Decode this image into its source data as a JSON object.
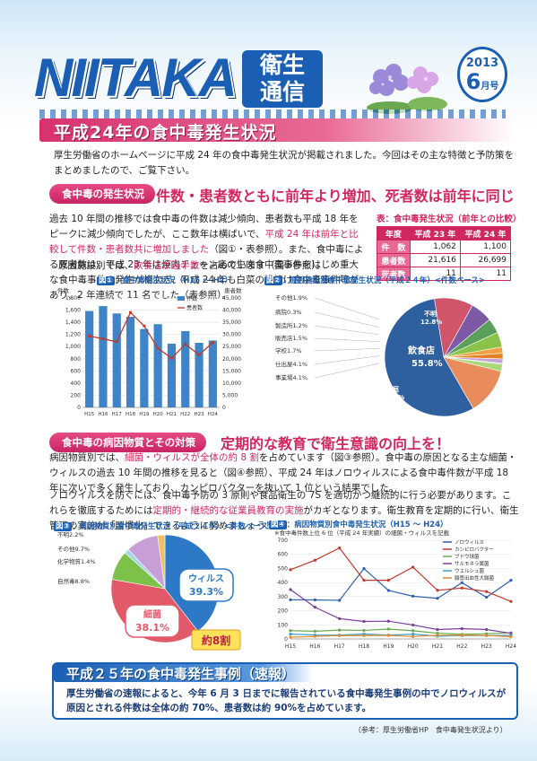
{
  "header": {
    "brand": "NIITAKA",
    "brand_sub_1": "衛生",
    "brand_sub_2": "通信",
    "year": "2013",
    "month": "6",
    "month_suffix": "月号"
  },
  "main_title": "平成24年の食中毒発生状況",
  "intro": "厚生労働省のホームページに平成 24 年の食中毒発生状況が掲載されました。今回はその主な特徴と予防策をまとめましたので、ご覧下さい。",
  "section1": {
    "tag": "食中毒の発生状況",
    "headline": "件数・患者数ともに前年より増加、死者数は前年に同じ",
    "para1_a": "過去 10 年間の推移では食中毒の件数は減少傾向、患者数も平成 18 年をピークに減少傾向でしたが、ここ数年は横ばいで、",
    "para1_hl": "平成 24 年は前年と比較して件数・患者数共に増加しました",
    "para1_b": "（図①・表参照）。また、食中毒による死者数は、平成 23 年は焼肉チェーン店の生肉食中毒事件をはじめ重大な食中毒事件の発生が相次ぎ、平成 24 年も白菜の浅漬け食中毒事件等があり、2 年連続で 11 名でした（表参照）。",
    "para2_a": "原因施設別では、",
    "para2_hl": "飲食店が過半数",
    "para2_b": "を占めています（図②参照）。"
  },
  "table": {
    "title": "表：食中毒発生状況（前年との比較）",
    "headers": [
      "年度",
      "平成 23 年",
      "平成 24 年"
    ],
    "rows": [
      {
        "label": "件　数",
        "v23": "1,062",
        "v24": "1,100"
      },
      {
        "label": "患者数",
        "v23": "21,616",
        "v24": "26,699"
      },
      {
        "label": "死者数",
        "v23": "11",
        "v24": "11"
      }
    ]
  },
  "fig1": {
    "num": "図①",
    "title": "：食中毒発生状況（H15 ～ H2）",
    "left_unit": "件数",
    "right_unit": "患者数",
    "legend_bar": "件数",
    "legend_line": "患者数"
  },
  "fig2": {
    "num": "図②",
    "title": "：原因施設別食中毒発生状況（平成２４年）<件数ベース>",
    "labels": {
      "other": "その他1.9%",
      "hospital": "病院0.3%",
      "factory": "製造所1.2%",
      "shop": "販売店1.5%",
      "school": "学校1.7%",
      "catering": "仕出屋4.1%",
      "office": "事業場4.1%",
      "inn": "旅館",
      "inn_pct": "6.0%",
      "home": "家庭",
      "home_pct": "10.6%",
      "unknown": "不明",
      "unknown_pct": "12.8%",
      "restaurant": "飲食店",
      "restaurant_pct": "55.8%"
    }
  },
  "section2": {
    "tag": "食中毒の病因物質とその対策",
    "headline": "定期的な教育で衛生意識の向上を！",
    "para3_a": "病因物質別では、",
    "para3_hl": "細菌・ウィルスが全体の約 8 割",
    "para3_b": "を占めています（図③参照）。食中毒の原因となる主な細菌・ウィルスの過去 10 年間の推移を見ると（図④参照）、平成 24 年はノロウィルスによる食中毒件数が平成 18 年に次いで多く発生しており、カンピロバクターを抜いて 1 位という結果でした。",
    "para4_a": "ノロウイルスを防ぐには、食中毒予防の 3 原則や食品衛生の 7S を適切かつ継続的に行う必要があります。これらを徹底するためには",
    "para4_hl": "定期的・継続的な従業員教育の実施",
    "para4_b": "がカギとなります。衛生教育を定期的に行い、衛生管理の実施が「習慣化」できるように努めましょう！"
  },
  "fig3": {
    "num": "図③",
    "title": "：病因物質別食中毒発生状況（平成２４年）<件数ベース>",
    "labels": {
      "unknown": "不明2.2%",
      "other": "その他9.7%",
      "chemical": "化学物質1.4%",
      "natural": "自然毒8.8%",
      "virus": "ウィルス",
      "virus_pct": "39.3%",
      "bacteria": "細菌",
      "bacteria_pct": "38.1%",
      "approx": "約8割"
    }
  },
  "fig4": {
    "num": "図④",
    "title": "：病因物質別食中毒発生状況（H15 ～ H24）",
    "note": "※食中毒件数上位 6 位（平成 24 年実績）の細菌・ウィルスを記載",
    "legend": [
      "ノロウィルス",
      "カンピロバクター",
      "ブドウ球菌",
      "サルモネラ属菌",
      "ウエルシュ菌",
      "腸管出血性大腸菌"
    ],
    "colors": [
      "#2f5fb0",
      "#c0392b",
      "#6aa84f",
      "#7b3fa0",
      "#3aa0c8",
      "#e08a2a"
    ]
  },
  "case": {
    "title": "平成２５年の食中毒発生事例（速報）",
    "text": "厚生労働省の速報によると、今年 6 月 3 日までに報告されている食中毒発生事例の中でノロウィルスが原因とされる件数は全体の約 70%、患者数は約 90%を占めています。"
  },
  "source": "（参考：厚生労働省HP　食中毒発生状況より）",
  "chart_data": [
    {
      "type": "bar",
      "categories": [
        "H15",
        "H16",
        "H17",
        "H18",
        "H19",
        "H20",
        "H21",
        "H22",
        "H23",
        "H24"
      ],
      "series": [
        {
          "name": "件数",
          "values": [
            1585,
            1666,
            1545,
            1491,
            1289,
            1369,
            1048,
            1254,
            1062,
            1100
          ]
        },
        {
          "name": "患者数",
          "values": [
            29355,
            28175,
            27019,
            39026,
            33477,
            24303,
            20249,
            25972,
            21616,
            26699
          ]
        }
      ],
      "ylabel": "件数",
      "y2label": "患者数",
      "ylim": [
        0,
        1800
      ],
      "y2lim": [
        0,
        45000
      ],
      "yticks": [
        0,
        200,
        400,
        600,
        800,
        1000,
        1200,
        1400,
        1600,
        1800
      ],
      "y2ticks": [
        0,
        5000,
        10000,
        15000,
        20000,
        25000,
        30000,
        35000,
        40000,
        45000
      ],
      "legend": "top-right"
    },
    {
      "type": "pie",
      "categories": [
        "飲食店",
        "家庭",
        "旅館",
        "事業場",
        "仕出屋",
        "学校",
        "販売店",
        "製造所",
        "病院",
        "その他",
        "不明"
      ],
      "values": [
        55.8,
        10.6,
        6.0,
        4.1,
        4.1,
        1.7,
        1.5,
        1.2,
        0.3,
        1.9,
        12.8
      ]
    },
    {
      "type": "pie",
      "categories": [
        "ウィルス",
        "細菌",
        "自然毒",
        "化学物質",
        "その他",
        "不明"
      ],
      "values": [
        39.3,
        38.1,
        8.8,
        1.4,
        9.7,
        2.2
      ]
    },
    {
      "type": "line",
      "categories": [
        "H15",
        "H16",
        "H17",
        "H18",
        "H19",
        "H20",
        "H21",
        "H22",
        "H23",
        "H24"
      ],
      "series": [
        {
          "name": "ノロウィルス",
          "values": [
            278,
            277,
            274,
            499,
            344,
            303,
            288,
            399,
            296,
            416
          ]
        },
        {
          "name": "カンピロバクター",
          "values": [
            491,
            558,
            645,
            416,
            416,
            509,
            345,
            361,
            336,
            266
          ]
        },
        {
          "name": "ブドウ球菌",
          "values": [
            59,
            55,
            63,
            61,
            70,
            58,
            41,
            33,
            37,
            44
          ]
        },
        {
          "name": "サルモネラ属菌",
          "values": [
            350,
            225,
            144,
            124,
            126,
            99,
            67,
            73,
            67,
            40
          ]
        },
        {
          "name": "ウエルシュ菌",
          "values": [
            34,
            28,
            27,
            35,
            27,
            34,
            20,
            24,
            24,
            26
          ]
        },
        {
          "name": "腸管出血性大腸菌",
          "values": [
            12,
            18,
            24,
            24,
            25,
            17,
            26,
            27,
            25,
            16
          ]
        }
      ],
      "ylim": [
        0,
        700
      ],
      "yticks": [
        0,
        100,
        200,
        300,
        400,
        500,
        600,
        700
      ],
      "legend": "top-right"
    }
  ]
}
